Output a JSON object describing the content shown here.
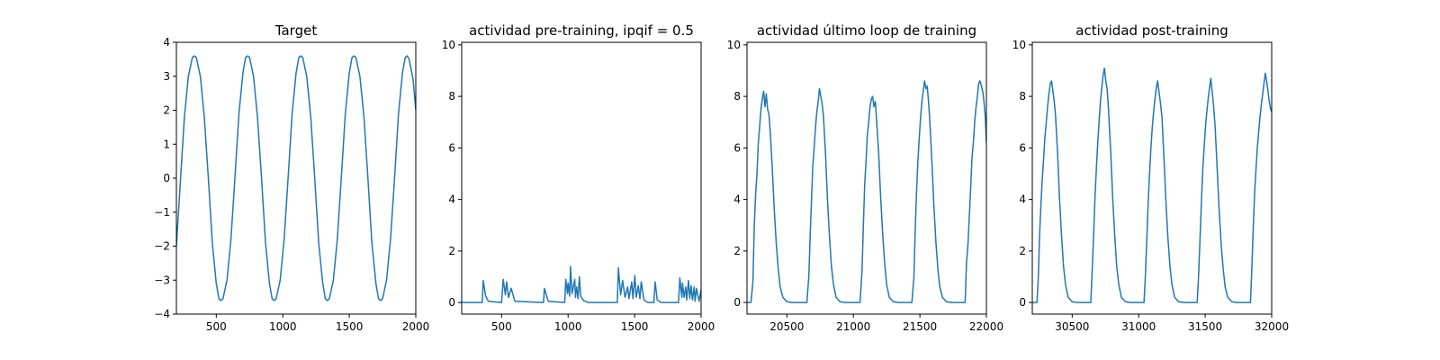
{
  "chart_data": [
    {
      "type": "line",
      "title": "Target",
      "xlabel": "",
      "ylabel": "",
      "xlim": [
        200,
        2000
      ],
      "ylim": [
        -4,
        4
      ],
      "xticks": [
        500,
        1000,
        1500,
        2000
      ],
      "yticks": [
        -4,
        -3,
        -2,
        -1,
        0,
        1,
        2,
        3,
        4
      ],
      "xtick_labels": [
        "500",
        "1000",
        "1500",
        "2000"
      ],
      "ytick_labels": [
        "−4",
        "−3",
        "−2",
        "−1",
        "0",
        "1",
        "2",
        "3",
        "4"
      ],
      "grid": false,
      "color": "#1f77b4",
      "series": [
        {
          "x": [
            200,
            230,
            260,
            290,
            320,
            335,
            350,
            380,
            410,
            440,
            470,
            500,
            520,
            535,
            550,
            580,
            610,
            640,
            670,
            700,
            720,
            735,
            750,
            780,
            810,
            840,
            870,
            900,
            920,
            935,
            950,
            980,
            1010,
            1040,
            1070,
            1100,
            1120,
            1135,
            1150,
            1180,
            1210,
            1240,
            1270,
            1300,
            1320,
            1335,
            1350,
            1380,
            1410,
            1440,
            1470,
            1500,
            1520,
            1535,
            1550,
            1580,
            1610,
            1640,
            1670,
            1700,
            1720,
            1735,
            1750,
            1780,
            1810,
            1840,
            1870,
            1900,
            1920,
            1935,
            1950,
            1980,
            2000
          ],
          "y": [
            -2.0,
            -0.1,
            1.8,
            3.0,
            3.55,
            3.6,
            3.55,
            3.0,
            1.8,
            0.0,
            -1.9,
            -3.1,
            -3.55,
            -3.6,
            -3.55,
            -3.0,
            -1.8,
            0.0,
            1.9,
            3.1,
            3.55,
            3.6,
            3.55,
            3.0,
            1.8,
            0.0,
            -1.9,
            -3.1,
            -3.55,
            -3.6,
            -3.55,
            -3.0,
            -1.8,
            0.0,
            1.9,
            3.1,
            3.55,
            3.6,
            3.55,
            3.0,
            1.8,
            0.0,
            -1.9,
            -3.1,
            -3.55,
            -3.6,
            -3.55,
            -3.0,
            -1.8,
            0.0,
            1.9,
            3.1,
            3.55,
            3.6,
            3.55,
            3.0,
            1.8,
            0.0,
            -1.9,
            -3.1,
            -3.55,
            -3.6,
            -3.55,
            -3.0,
            -1.8,
            0.0,
            1.9,
            3.1,
            3.55,
            3.6,
            3.5,
            2.9,
            2.0
          ]
        }
      ]
    },
    {
      "type": "line",
      "title": "actividad pre-training, ipqif = 0.5",
      "xlabel": "",
      "ylabel": "",
      "xlim": [
        200,
        2000
      ],
      "ylim": [
        -0.45,
        10.1
      ],
      "xticks": [
        500,
        1000,
        1500,
        2000
      ],
      "yticks": [
        0,
        2,
        4,
        6,
        8,
        10
      ],
      "xtick_labels": [
        "500",
        "1000",
        "1500",
        "2000"
      ],
      "ytick_labels": [
        "0",
        "2",
        "4",
        "6",
        "8",
        "10"
      ],
      "grid": false,
      "color": "#1f77b4",
      "series": [
        {
          "x": [
            200,
            355,
            362,
            380,
            400,
            500,
            512,
            528,
            538,
            552,
            572,
            600,
            815,
            822,
            850,
            975,
            982,
            995,
            1000,
            1012,
            1018,
            1030,
            1050,
            1055,
            1065,
            1075,
            1085,
            1095,
            1115,
            1150,
            1370,
            1378,
            1395,
            1410,
            1428,
            1448,
            1458,
            1478,
            1488,
            1502,
            1512,
            1528,
            1540,
            1550,
            1570,
            1600,
            1645,
            1655,
            1670,
            1700,
            1830,
            1840,
            1855,
            1860,
            1872,
            1885,
            1892,
            1905,
            1915,
            1925,
            1935,
            1948,
            1955,
            1965,
            1985,
            2000
          ],
          "y": [
            0.0,
            0.0,
            0.85,
            0.25,
            0.05,
            0.0,
            0.9,
            0.3,
            0.8,
            0.2,
            0.55,
            0.05,
            0.0,
            0.55,
            0.05,
            0.0,
            0.9,
            0.35,
            0.75,
            0.25,
            1.4,
            0.35,
            0.9,
            0.2,
            0.6,
            0.15,
            1.0,
            0.25,
            0.08,
            0.0,
            0.0,
            1.35,
            0.3,
            0.85,
            0.2,
            0.6,
            0.15,
            0.8,
            0.15,
            1.05,
            0.2,
            0.65,
            0.15,
            0.8,
            0.1,
            0.0,
            0.0,
            0.8,
            0.1,
            0.0,
            0.0,
            0.95,
            0.2,
            0.75,
            0.2,
            0.6,
            0.1,
            0.85,
            0.15,
            0.65,
            0.1,
            0.6,
            0.05,
            0.55,
            0.05,
            0.5
          ]
        }
      ]
    },
    {
      "type": "line",
      "title": "actividad último loop de training",
      "xlabel": "",
      "ylabel": "",
      "xlim": [
        20200,
        22000
      ],
      "ylim": [
        -0.45,
        10.1
      ],
      "xticks": [
        20500,
        21000,
        21500,
        22000
      ],
      "yticks": [
        0,
        2,
        4,
        6,
        8,
        10
      ],
      "xtick_labels": [
        "20500",
        "21000",
        "21500",
        "22000"
      ],
      "ytick_labels": [
        "0",
        "2",
        "4",
        "6",
        "8",
        "10"
      ],
      "grid": false,
      "color": "#1f77b4",
      "series": [
        {
          "x": [
            20200,
            20230,
            20245,
            20255,
            20265,
            20275,
            20285,
            20295,
            20305,
            20315,
            20325,
            20335,
            20345,
            20355,
            20365,
            20375,
            20390,
            20405,
            20420,
            20435,
            20450,
            20470,
            20500,
            20540,
            20650,
            20665,
            20675,
            20685,
            20695,
            20705,
            20715,
            20725,
            20735,
            20745,
            20755,
            20765,
            20775,
            20790,
            20805,
            20820,
            20835,
            20850,
            20870,
            20900,
            20940,
            21050,
            21065,
            21075,
            21085,
            21095,
            21105,
            21115,
            21125,
            21135,
            21145,
            21155,
            21165,
            21175,
            21190,
            21205,
            21220,
            21235,
            21250,
            21270,
            21300,
            21340,
            21440,
            21455,
            21465,
            21475,
            21485,
            21495,
            21505,
            21515,
            21525,
            21535,
            21545,
            21555,
            21565,
            21575,
            21590,
            21605,
            21620,
            21635,
            21650,
            21670,
            21700,
            21740,
            21840,
            21850,
            21862,
            21872,
            21882,
            21892,
            21902,
            21912,
            21922,
            21932,
            21942,
            21952,
            21962,
            21972,
            21982,
            21992,
            22000
          ],
          "y": [
            0.0,
            0.0,
            0.8,
            3.0,
            4.2,
            5.0,
            6.2,
            6.8,
            7.5,
            7.9,
            8.2,
            7.6,
            8.1,
            7.5,
            7.3,
            6.6,
            5.2,
            3.6,
            2.3,
            1.3,
            0.6,
            0.2,
            0.03,
            0.0,
            0.0,
            1.0,
            2.6,
            4.0,
            5.3,
            6.0,
            6.8,
            7.4,
            7.8,
            8.3,
            8.0,
            7.7,
            7.2,
            5.8,
            4.0,
            2.6,
            1.4,
            0.7,
            0.2,
            0.03,
            0.0,
            0.0,
            1.2,
            3.0,
            4.6,
            5.5,
            6.5,
            7.0,
            7.6,
            7.9,
            8.0,
            7.6,
            7.8,
            7.0,
            5.8,
            4.1,
            2.7,
            1.5,
            0.7,
            0.2,
            0.03,
            0.0,
            0.0,
            1.0,
            2.8,
            4.3,
            5.5,
            6.4,
            7.2,
            7.8,
            8.2,
            8.6,
            8.3,
            8.4,
            7.8,
            7.0,
            5.5,
            3.8,
            2.4,
            1.3,
            0.6,
            0.2,
            0.03,
            0.0,
            0.0,
            1.5,
            2.3,
            3.4,
            4.5,
            5.6,
            6.2,
            7.0,
            7.6,
            8.0,
            8.5,
            8.6,
            8.4,
            8.2,
            7.8,
            7.2,
            6.2
          ]
        }
      ]
    },
    {
      "type": "line",
      "title": "actividad post-training",
      "xlabel": "",
      "ylabel": "",
      "xlim": [
        30200,
        32000
      ],
      "ylim": [
        -0.45,
        10.1
      ],
      "xticks": [
        30500,
        31000,
        31500,
        32000
      ],
      "yticks": [
        0,
        2,
        4,
        6,
        8,
        10
      ],
      "xtick_labels": [
        "30500",
        "31000",
        "31500",
        "32000"
      ],
      "ytick_labels": [
        "0",
        "2",
        "4",
        "6",
        "8",
        "10"
      ],
      "grid": false,
      "color": "#1f77b4",
      "series": [
        {
          "x": [
            30200,
            30235,
            30245,
            30255,
            30265,
            30275,
            30285,
            30295,
            30305,
            30315,
            30325,
            30335,
            30345,
            30355,
            30365,
            30375,
            30390,
            30405,
            30420,
            30435,
            30450,
            30470,
            30500,
            30540,
            30640,
            30650,
            30662,
            30672,
            30682,
            30692,
            30702,
            30712,
            30722,
            30732,
            30742,
            30752,
            30762,
            30772,
            30790,
            30805,
            30820,
            30835,
            30850,
            30870,
            30900,
            30940,
            31040,
            31050,
            31062,
            31072,
            31082,
            31092,
            31102,
            31112,
            31122,
            31132,
            31142,
            31152,
            31162,
            31175,
            31190,
            31205,
            31220,
            31235,
            31250,
            31270,
            31300,
            31340,
            31440,
            31450,
            31462,
            31472,
            31482,
            31492,
            31502,
            31512,
            31522,
            31532,
            31542,
            31552,
            31562,
            31575,
            31590,
            31605,
            31620,
            31635,
            31650,
            31670,
            31700,
            31740,
            31840,
            31850,
            31862,
            31872,
            31882,
            31892,
            31902,
            31912,
            31922,
            31932,
            31942,
            31952,
            31962,
            31972,
            31982,
            31992,
            32000
          ],
          "y": [
            0.0,
            0.0,
            1.0,
            2.6,
            3.8,
            4.8,
            5.6,
            6.4,
            7.0,
            7.6,
            8.1,
            8.5,
            8.6,
            8.2,
            7.8,
            7.2,
            5.8,
            4.0,
            2.6,
            1.4,
            0.7,
            0.2,
            0.03,
            0.0,
            0.0,
            1.2,
            2.8,
            4.2,
            5.2,
            6.2,
            7.0,
            7.8,
            8.3,
            8.8,
            9.1,
            8.6,
            8.3,
            7.6,
            5.8,
            4.0,
            2.6,
            1.4,
            0.7,
            0.2,
            0.03,
            0.0,
            0.0,
            1.0,
            2.6,
            4.0,
            5.0,
            6.0,
            6.8,
            7.4,
            7.9,
            8.3,
            8.6,
            8.2,
            7.8,
            7.2,
            5.6,
            3.9,
            2.5,
            1.4,
            0.7,
            0.2,
            0.03,
            0.0,
            0.0,
            1.0,
            2.6,
            4.0,
            5.2,
            6.0,
            6.8,
            7.4,
            7.9,
            8.3,
            8.7,
            8.2,
            7.7,
            6.8,
            5.2,
            3.6,
            2.3,
            1.3,
            0.6,
            0.2,
            0.03,
            0.0,
            0.0,
            1.2,
            3.0,
            4.3,
            5.2,
            6.0,
            6.6,
            7.2,
            7.7,
            8.1,
            8.5,
            8.9,
            8.6,
            8.2,
            7.8,
            7.5,
            7.4
          ]
        }
      ]
    }
  ]
}
